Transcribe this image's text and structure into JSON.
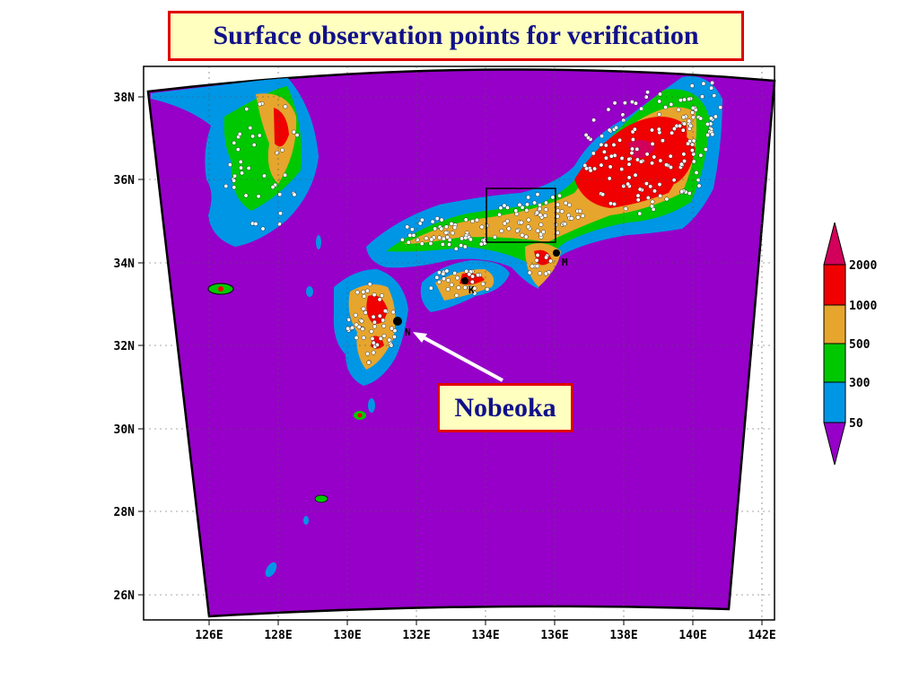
{
  "title": "Surface observation points for verification",
  "callout": {
    "label": "Nobeoka"
  },
  "map": {
    "x_ticks": [
      "126E",
      "128E",
      "130E",
      "132E",
      "134E",
      "136E",
      "138E",
      "140E",
      "142E"
    ],
    "y_ticks": [
      "38N",
      "36N",
      "34N",
      "32N",
      "30N",
      "28N",
      "26N"
    ],
    "background_color": "#9600c8",
    "station_labels": [
      "N",
      "K",
      "M"
    ]
  },
  "legend": {
    "title": "",
    "levels": [
      "2000",
      "1000",
      "500",
      "300",
      "50"
    ],
    "colors": {
      "above_2000": "#d2005a",
      "1000_2000": "#f00000",
      "500_1000": "#e6a52d",
      "300_500": "#00c800",
      "50_300": "#0096e6",
      "below_50": "#9600c8"
    }
  }
}
